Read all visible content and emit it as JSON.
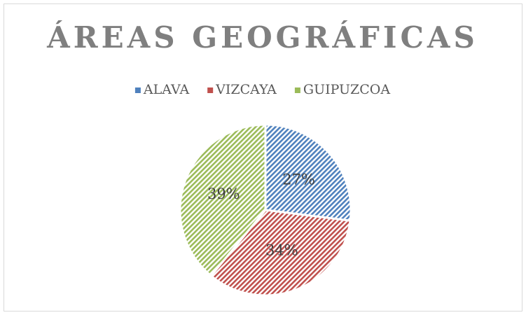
{
  "chart_data": {
    "type": "pie",
    "title": "ÁREAS GEOGRÁFICAS",
    "categories": [
      "ALAVA",
      "VIZCAYA",
      "GUIPUZCOA"
    ],
    "values": [
      27,
      34,
      39
    ],
    "value_labels": [
      "27%",
      "34%",
      "39%"
    ],
    "colors": [
      "#4f81bd",
      "#c0504d",
      "#9bbb59"
    ],
    "legend": "top"
  }
}
